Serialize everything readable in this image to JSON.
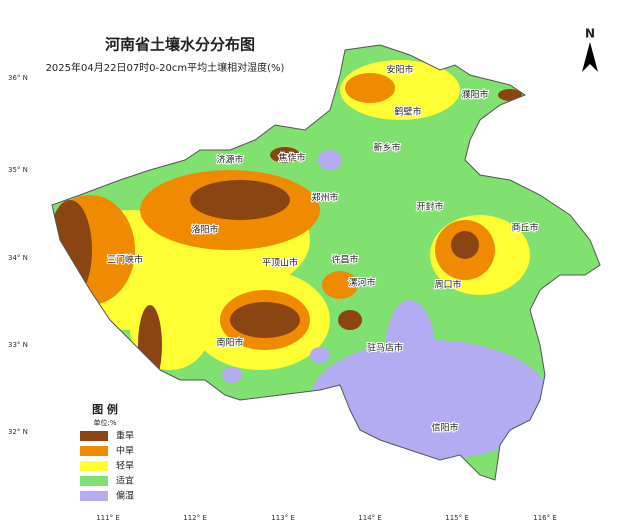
{
  "map": {
    "title": "河南省土壤水分分布图",
    "subtitle": "2025年04月22日07时0-20cm平均土壤相对湿度(%)",
    "north": "N",
    "latitude_labels": [
      "36° N",
      "35° N",
      "34° N",
      "33° N",
      "32° N"
    ],
    "longitude_labels": [
      "111° E",
      "112° E",
      "113° E",
      "114° E",
      "115° E",
      "116° E"
    ],
    "cities": [
      "安阳市",
      "濮阳市",
      "鹤壁市",
      "新乡市",
      "济源市",
      "焦作市",
      "郑州市",
      "开封市",
      "商丘市",
      "洛阳市",
      "三门峡市",
      "平顶山市",
      "许昌市",
      "漯河市",
      "周口市",
      "南阳市",
      "驻马店市",
      "信阳市"
    ],
    "legend": {
      "title": "图 例",
      "unit": "单位:%",
      "items": [
        {
          "name": "重旱",
          "color": "#8b4513"
        },
        {
          "name": "中旱",
          "color": "#f08a00"
        },
        {
          "name": "轻旱",
          "color": "#ffff33"
        },
        {
          "name": "适宜",
          "color": "#80e070"
        },
        {
          "name": "偏湿",
          "color": "#b4acf2"
        }
      ]
    }
  }
}
